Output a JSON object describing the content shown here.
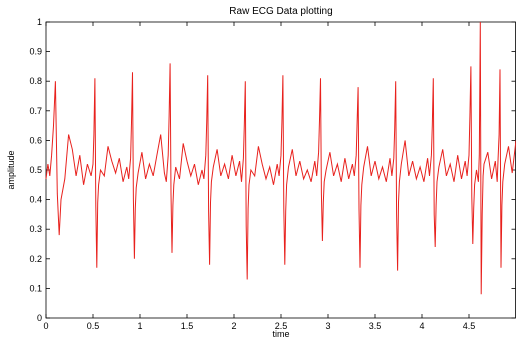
{
  "chart_data": {
    "type": "line",
    "title": "Raw ECG Data plotting",
    "xlabel": "time",
    "ylabel": "amplitude",
    "xlim": [
      0,
      5
    ],
    "ylim": [
      0,
      1
    ],
    "xticks": [
      "0",
      "0.5",
      "1",
      "1.5",
      "2",
      "2.5",
      "3",
      "3.5",
      "4",
      "4.5"
    ],
    "xtick_values": [
      0,
      0.5,
      1,
      1.5,
      2,
      2.5,
      3,
      3.5,
      4,
      4.5
    ],
    "yticks": [
      "0",
      "0.1",
      "0.2",
      "0.3",
      "0.4",
      "0.5",
      "0.6",
      "0.7",
      "0.8",
      "0.9",
      "1"
    ],
    "ytick_values": [
      0,
      0.1,
      0.2,
      0.3,
      0.4,
      0.5,
      0.6,
      0.7,
      0.8,
      0.9,
      1
    ],
    "grid": false,
    "series_color": "#e8211d",
    "series": [
      {
        "x": [
          0.0,
          0.02,
          0.04,
          0.06,
          0.08,
          0.1,
          0.12,
          0.14,
          0.16,
          0.2,
          0.24,
          0.28,
          0.32,
          0.36,
          0.4,
          0.44,
          0.48,
          0.5,
          0.51,
          0.52,
          0.53,
          0.54,
          0.55,
          0.56,
          0.58,
          0.62,
          0.66,
          0.7,
          0.74,
          0.78,
          0.82,
          0.86,
          0.88,
          0.9,
          0.91,
          0.92,
          0.93,
          0.94,
          0.95,
          0.96,
          0.98,
          1.02,
          1.06,
          1.1,
          1.14,
          1.18,
          1.22,
          1.26,
          1.28,
          1.3,
          1.31,
          1.32,
          1.33,
          1.34,
          1.35,
          1.36,
          1.38,
          1.42,
          1.46,
          1.5,
          1.54,
          1.58,
          1.62,
          1.66,
          1.68,
          1.7,
          1.71,
          1.72,
          1.73,
          1.74,
          1.75,
          1.76,
          1.78,
          1.82,
          1.86,
          1.9,
          1.94,
          1.98,
          2.02,
          2.06,
          2.08,
          2.1,
          2.11,
          2.12,
          2.13,
          2.14,
          2.15,
          2.16,
          2.18,
          2.22,
          2.26,
          2.3,
          2.34,
          2.38,
          2.42,
          2.46,
          2.48,
          2.5,
          2.51,
          2.52,
          2.53,
          2.54,
          2.55,
          2.56,
          2.58,
          2.62,
          2.66,
          2.7,
          2.74,
          2.78,
          2.82,
          2.86,
          2.88,
          2.9,
          2.91,
          2.92,
          2.93,
          2.94,
          2.95,
          2.96,
          2.98,
          3.02,
          3.06,
          3.1,
          3.14,
          3.18,
          3.22,
          3.26,
          3.28,
          3.3,
          3.31,
          3.32,
          3.33,
          3.34,
          3.35,
          3.36,
          3.38,
          3.42,
          3.46,
          3.5,
          3.54,
          3.58,
          3.62,
          3.66,
          3.68,
          3.7,
          3.71,
          3.72,
          3.73,
          3.74,
          3.75,
          3.76,
          3.78,
          3.82,
          3.86,
          3.9,
          3.94,
          3.98,
          4.02,
          4.06,
          4.08,
          4.1,
          4.11,
          4.12,
          4.13,
          4.14,
          4.15,
          4.16,
          4.18,
          4.22,
          4.26,
          4.3,
          4.34,
          4.38,
          4.42,
          4.46,
          4.48,
          4.5,
          4.51,
          4.52,
          4.53,
          4.54,
          4.55,
          4.56,
          4.58,
          4.6,
          4.61,
          4.62,
          4.63,
          4.64,
          4.65,
          4.66,
          4.7,
          4.74,
          4.78,
          4.8,
          4.81,
          4.82,
          4.83,
          4.84,
          4.85,
          4.86,
          4.88,
          4.92,
          4.96,
          5.0
        ],
        "y": [
          0.47,
          0.52,
          0.48,
          0.55,
          0.65,
          0.8,
          0.42,
          0.28,
          0.4,
          0.47,
          0.62,
          0.57,
          0.48,
          0.55,
          0.45,
          0.52,
          0.48,
          0.52,
          0.62,
          0.81,
          0.38,
          0.17,
          0.39,
          0.45,
          0.5,
          0.48,
          0.58,
          0.53,
          0.49,
          0.54,
          0.46,
          0.51,
          0.47,
          0.54,
          0.66,
          0.83,
          0.4,
          0.2,
          0.37,
          0.44,
          0.49,
          0.56,
          0.47,
          0.52,
          0.48,
          0.55,
          0.62,
          0.49,
          0.46,
          0.55,
          0.68,
          0.86,
          0.42,
          0.22,
          0.38,
          0.45,
          0.51,
          0.47,
          0.59,
          0.53,
          0.48,
          0.52,
          0.45,
          0.5,
          0.47,
          0.55,
          0.66,
          0.82,
          0.36,
          0.18,
          0.39,
          0.46,
          0.51,
          0.57,
          0.48,
          0.52,
          0.47,
          0.55,
          0.48,
          0.53,
          0.46,
          0.54,
          0.65,
          0.8,
          0.31,
          0.13,
          0.37,
          0.45,
          0.5,
          0.48,
          0.58,
          0.52,
          0.47,
          0.51,
          0.45,
          0.52,
          0.48,
          0.55,
          0.66,
          0.82,
          0.37,
          0.18,
          0.36,
          0.45,
          0.51,
          0.57,
          0.48,
          0.53,
          0.47,
          0.5,
          0.46,
          0.53,
          0.48,
          0.56,
          0.67,
          0.81,
          0.42,
          0.26,
          0.39,
          0.46,
          0.5,
          0.56,
          0.48,
          0.52,
          0.46,
          0.54,
          0.47,
          0.52,
          0.48,
          0.55,
          0.66,
          0.78,
          0.37,
          0.17,
          0.38,
          0.45,
          0.51,
          0.58,
          0.48,
          0.53,
          0.47,
          0.51,
          0.46,
          0.54,
          0.48,
          0.54,
          0.64,
          0.8,
          0.35,
          0.16,
          0.39,
          0.46,
          0.52,
          0.6,
          0.48,
          0.53,
          0.47,
          0.51,
          0.46,
          0.54,
          0.48,
          0.55,
          0.65,
          0.81,
          0.35,
          0.24,
          0.38,
          0.46,
          0.51,
          0.57,
          0.48,
          0.52,
          0.46,
          0.55,
          0.47,
          0.53,
          0.48,
          0.55,
          0.68,
          0.85,
          0.41,
          0.25,
          0.37,
          0.45,
          0.5,
          0.46,
          0.55,
          1.0,
          0.08,
          0.35,
          0.48,
          0.52,
          0.56,
          0.47,
          0.53,
          0.46,
          0.54,
          0.62,
          0.84,
          0.17,
          0.38,
          0.46,
          0.52,
          0.58,
          0.49,
          0.6
        ]
      }
    ]
  }
}
